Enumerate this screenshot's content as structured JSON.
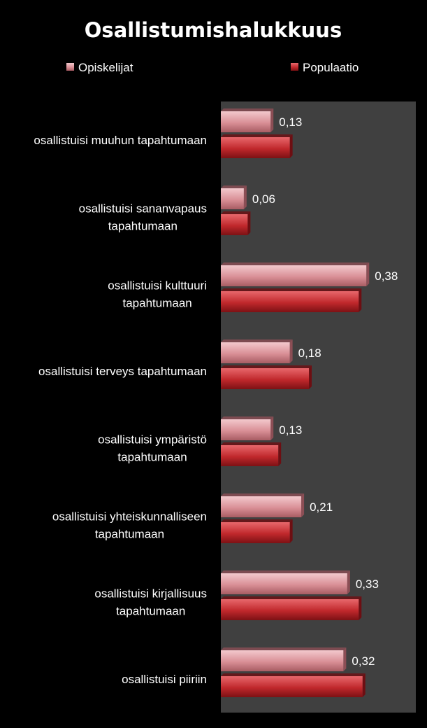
{
  "chart_data": {
    "type": "bar",
    "orientation": "horizontal",
    "title": "Osallistumishalukkuus",
    "xlabel": "",
    "ylabel": "",
    "xlim": [
      0,
      0.5
    ],
    "grid": false,
    "legend_position": "top",
    "categories": [
      [
        "osallistuisi muuhun tapahtumaan"
      ],
      [
        "osallistuisi sananvapaus",
        "tapahtumaan"
      ],
      [
        "osallistuisi kulttuuri",
        "tapahtumaan"
      ],
      [
        "osallistuisi terveys tapahtumaan"
      ],
      [
        "osallistuisi ympäristö",
        "tapahtumaan"
      ],
      [
        "osallistuisi yhteiskunnalliseen",
        "tapahtumaan"
      ],
      [
        "osallistuisi kirjallisuus",
        "tapahtumaan"
      ],
      [
        "osallistuisi piiriin"
      ]
    ],
    "series": [
      {
        "name": "Opiskelijat",
        "color": "#d98f96",
        "values": [
          0.13,
          0.06,
          0.38,
          0.18,
          0.13,
          0.21,
          0.33,
          0.32
        ],
        "labels": [
          "0,13",
          "0,06",
          "0,38",
          "0,18",
          "0,13",
          "0,21",
          "0,33",
          "0,32"
        ]
      },
      {
        "name": "Populaatio",
        "color": "#c0282c",
        "values": [
          0.18,
          0.07,
          0.36,
          0.23,
          0.15,
          0.18,
          0.36,
          0.37
        ]
      }
    ]
  }
}
